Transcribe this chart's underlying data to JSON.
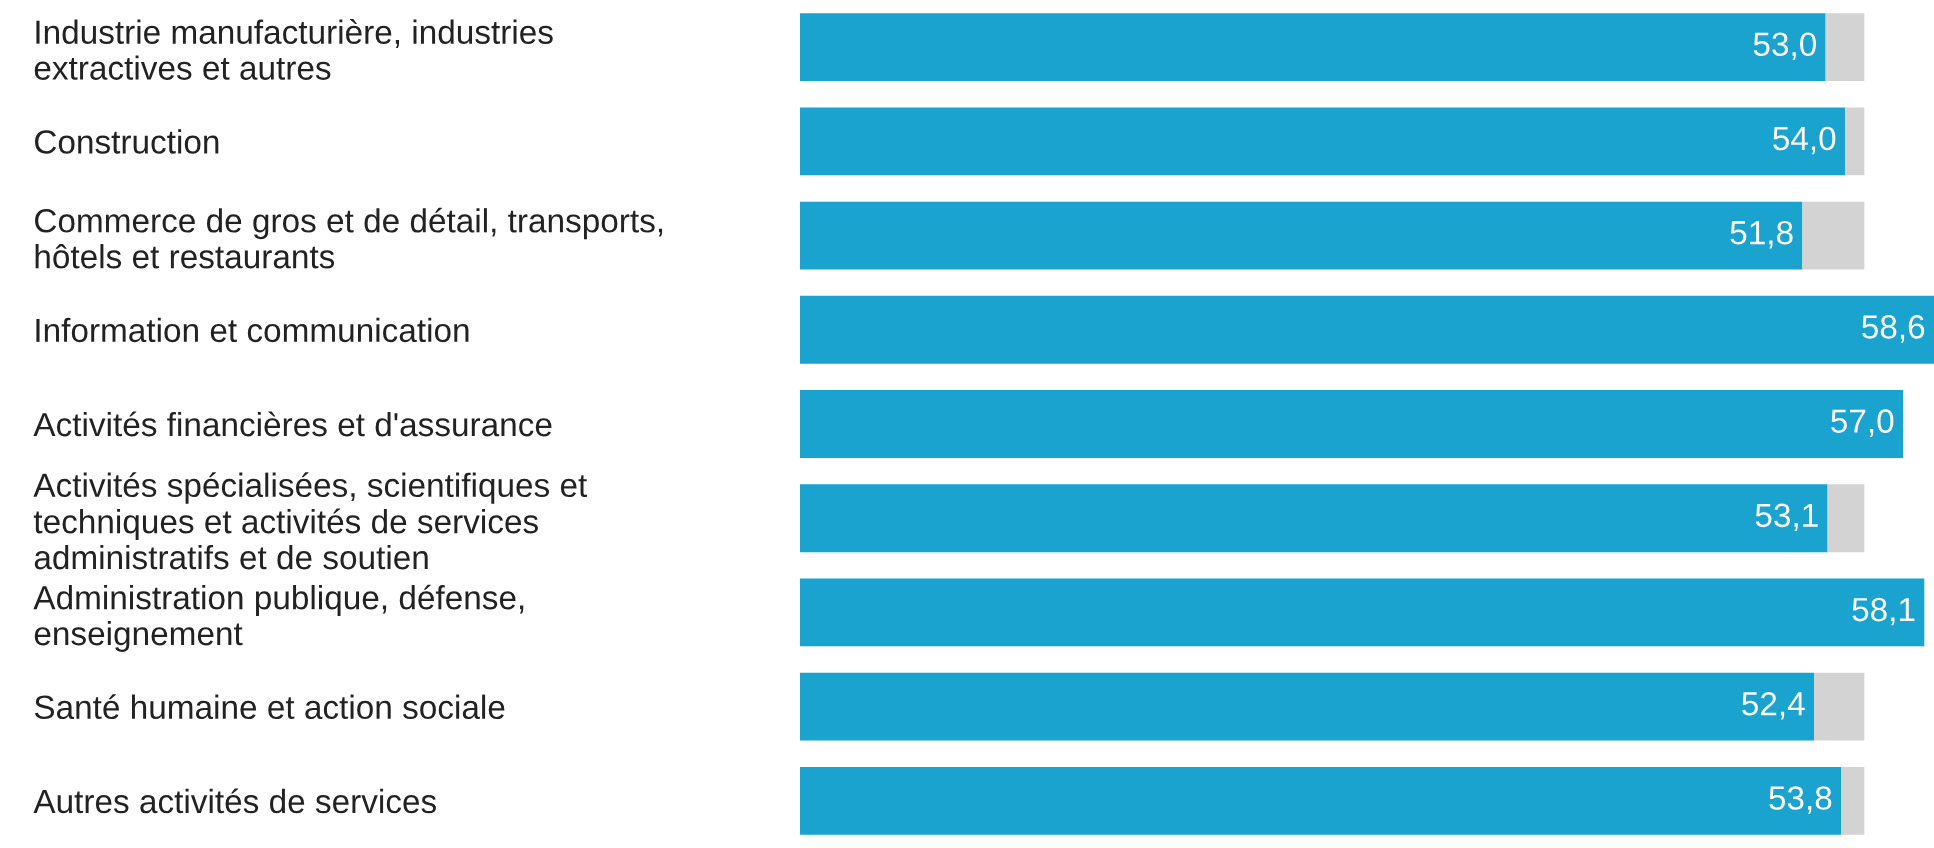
{
  "chart_data": {
    "type": "bar",
    "orientation": "horizontal",
    "stacked": true,
    "categories": [
      "Industrie manufacturière, industries\nextractives et autres",
      "Construction",
      "Commerce de gros et de détail, transports,\nhôtels et restaurants",
      "Information et communication",
      "Activités financières et d'assurance",
      "Activités spécialisées, scientifiques et\ntechniques et activités de services\nadministratifs et de soutien",
      "Administration publique, défense,\nenseignement",
      "Santé humaine et action sociale",
      "Autres activités de services"
    ],
    "series": [
      {
        "color": "#1ba3d0",
        "values": [
          53.0,
          54.0,
          51.8,
          58.6,
          57.0,
          53.1,
          58.1,
          52.4,
          53.8
        ],
        "value_labels": [
          "53,0",
          "54,0",
          "51,8",
          "58,6",
          "57,0",
          "53,1",
          "58,1",
          "52,4",
          "53,8"
        ]
      },
      {
        "color": "#d3d3d3",
        "values": [
          2.0,
          1.0,
          3.2,
          null,
          null,
          1.9,
          null,
          2.6,
          1.2
        ],
        "value_labels": [
          null,
          null,
          null,
          null,
          null,
          null,
          null,
          null,
          null
        ]
      }
    ],
    "grid": false,
    "tick_labels": "y"
  }
}
